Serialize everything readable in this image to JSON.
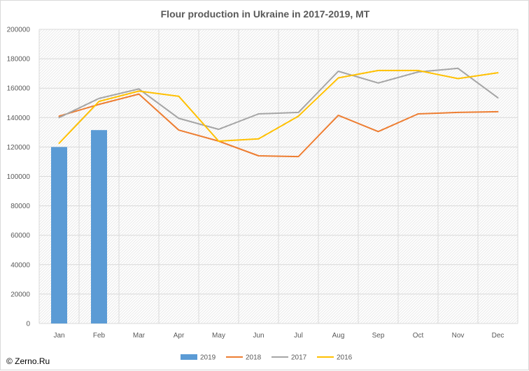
{
  "chart_data": {
    "type": "bar+line",
    "title": "Flour production in Ukraine in 2017-2019, MT",
    "categories": [
      "Jan",
      "Feb",
      "Mar",
      "Apr",
      "May",
      "Jun",
      "Jul",
      "Aug",
      "Sep",
      "Oct",
      "Nov",
      "Dec"
    ],
    "ylim": [
      0,
      200000
    ],
    "yticks": [
      0,
      20000,
      40000,
      60000,
      80000,
      100000,
      120000,
      140000,
      160000,
      180000,
      200000
    ],
    "grid": true,
    "legend_position": "bottom",
    "series": [
      {
        "name": "2019",
        "type": "bar",
        "color": "#5b9bd5",
        "values": [
          120000,
          131500,
          null,
          null,
          null,
          null,
          null,
          null,
          null,
          null,
          null,
          null
        ]
      },
      {
        "name": "2018",
        "type": "line",
        "color": "#ed7d31",
        "values": [
          141000,
          149000,
          156000,
          131500,
          124000,
          114000,
          113500,
          141500,
          130500,
          142500,
          143500,
          144000
        ]
      },
      {
        "name": "2017",
        "type": "line",
        "color": "#a5a5a5",
        "values": [
          140000,
          153000,
          159500,
          139500,
          132000,
          142500,
          143500,
          171500,
          163500,
          171000,
          173500,
          153500
        ]
      },
      {
        "name": "2016",
        "type": "line",
        "color": "#ffc000",
        "values": [
          122500,
          151000,
          158000,
          154500,
          124000,
          125500,
          141000,
          167000,
          172000,
          172000,
          166500,
          170500
        ]
      }
    ]
  },
  "watermark": "© Zerno.Ru"
}
